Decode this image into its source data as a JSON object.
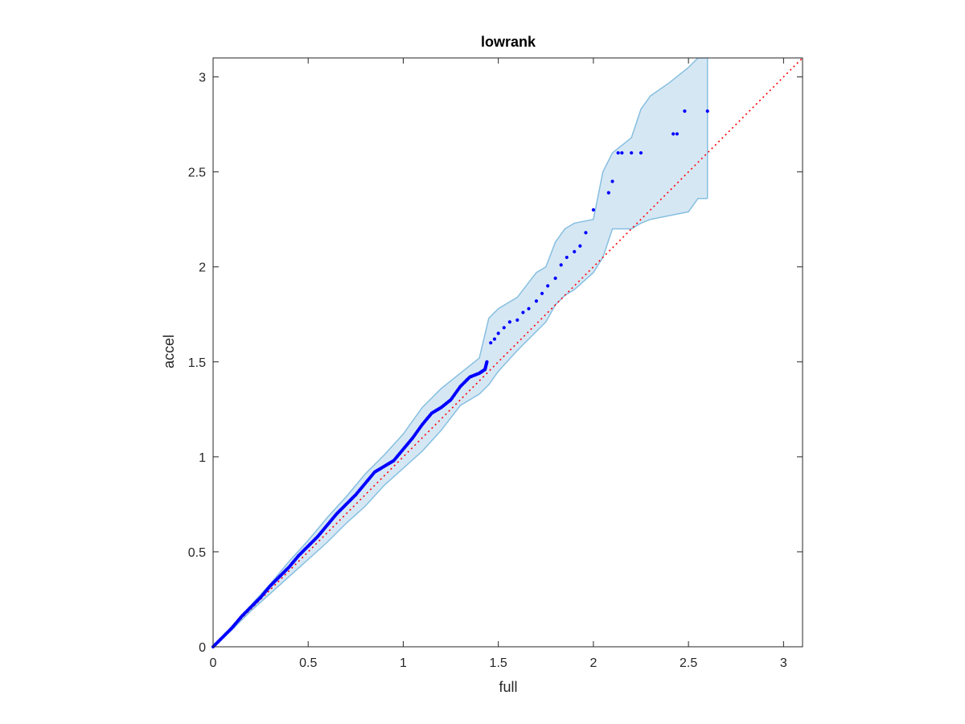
{
  "chart_data": {
    "type": "scatter",
    "title": "lowrank",
    "xlabel": "full",
    "ylabel": "accel",
    "xlim": [
      0,
      3.1
    ],
    "ylim": [
      0,
      3.1
    ],
    "x_ticks": [
      0,
      0.5,
      1,
      1.5,
      2,
      2.5,
      3
    ],
    "y_ticks": [
      0,
      0.5,
      1,
      1.5,
      2,
      2.5,
      3
    ],
    "x_tick_labels": [
      "0",
      "0.5",
      "1",
      "1.5",
      "2",
      "2.5",
      "3"
    ],
    "y_tick_labels": [
      "0",
      "0.5",
      "1",
      "1.5",
      "2",
      "2.5",
      "3"
    ],
    "grid": false,
    "colors": {
      "points": "#0000ff",
      "band_fill": "#d6e7f4",
      "band_edge": "#86bfe0",
      "reference": "#ff0000"
    },
    "reference_line": {
      "style": "dotted",
      "from": [
        0,
        0
      ],
      "to": [
        3.1,
        3.1
      ]
    },
    "band": {
      "x": [
        0,
        0.1,
        0.2,
        0.3,
        0.4,
        0.5,
        0.6,
        0.7,
        0.8,
        0.9,
        1.0,
        1.1,
        1.2,
        1.3,
        1.35,
        1.4,
        1.45,
        1.5,
        1.6,
        1.7,
        1.75,
        1.8,
        1.85,
        1.9,
        2.0,
        2.05,
        2.1,
        2.2,
        2.25,
        2.3,
        2.4,
        2.5,
        2.55,
        2.6
      ],
      "upper": [
        0,
        0.11,
        0.22,
        0.33,
        0.45,
        0.56,
        0.68,
        0.79,
        0.91,
        1.01,
        1.12,
        1.26,
        1.36,
        1.44,
        1.48,
        1.52,
        1.73,
        1.78,
        1.84,
        1.97,
        2.0,
        2.13,
        2.2,
        2.23,
        2.25,
        2.5,
        2.6,
        2.68,
        2.83,
        2.9,
        2.97,
        3.05,
        3.1,
        3.1
      ],
      "lower": [
        0,
        0.09,
        0.19,
        0.28,
        0.37,
        0.46,
        0.55,
        0.65,
        0.74,
        0.85,
        0.94,
        1.03,
        1.14,
        1.27,
        1.3,
        1.33,
        1.38,
        1.45,
        1.56,
        1.66,
        1.71,
        1.8,
        1.85,
        1.88,
        1.97,
        2.05,
        2.2,
        2.2,
        2.23,
        2.25,
        2.27,
        2.29,
        2.36,
        2.36
      ]
    },
    "series": [
      {
        "x": [
          0,
          0.05,
          0.1,
          0.15,
          0.2,
          0.25,
          0.3,
          0.35,
          0.4,
          0.45,
          0.5,
          0.55,
          0.6,
          0.65,
          0.7,
          0.75,
          0.8,
          0.85,
          0.9,
          0.95,
          1.0,
          1.05,
          1.1,
          1.15,
          1.2,
          1.25,
          1.3,
          1.35,
          1.4,
          1.43,
          1.44,
          1.46,
          1.48,
          1.5,
          1.53,
          1.56,
          1.6,
          1.63,
          1.66,
          1.7,
          1.73,
          1.76,
          1.8,
          1.83,
          1.86,
          1.9,
          1.93,
          1.96,
          2.0,
          2.08,
          2.1,
          2.13,
          2.15,
          2.2,
          2.25,
          2.42,
          2.44,
          2.48,
          2.6
        ],
        "y": [
          0,
          0.05,
          0.1,
          0.16,
          0.21,
          0.26,
          0.32,
          0.37,
          0.42,
          0.48,
          0.53,
          0.58,
          0.64,
          0.7,
          0.75,
          0.8,
          0.86,
          0.92,
          0.95,
          0.98,
          1.04,
          1.1,
          1.17,
          1.23,
          1.26,
          1.3,
          1.37,
          1.42,
          1.44,
          1.46,
          1.5,
          1.6,
          1.62,
          1.65,
          1.68,
          1.71,
          1.72,
          1.76,
          1.78,
          1.82,
          1.86,
          1.9,
          1.94,
          2.01,
          2.05,
          2.08,
          2.11,
          2.18,
          2.3,
          2.39,
          2.45,
          2.6,
          2.6,
          2.6,
          2.6,
          2.7,
          2.7,
          2.82,
          2.82
        ]
      }
    ]
  }
}
